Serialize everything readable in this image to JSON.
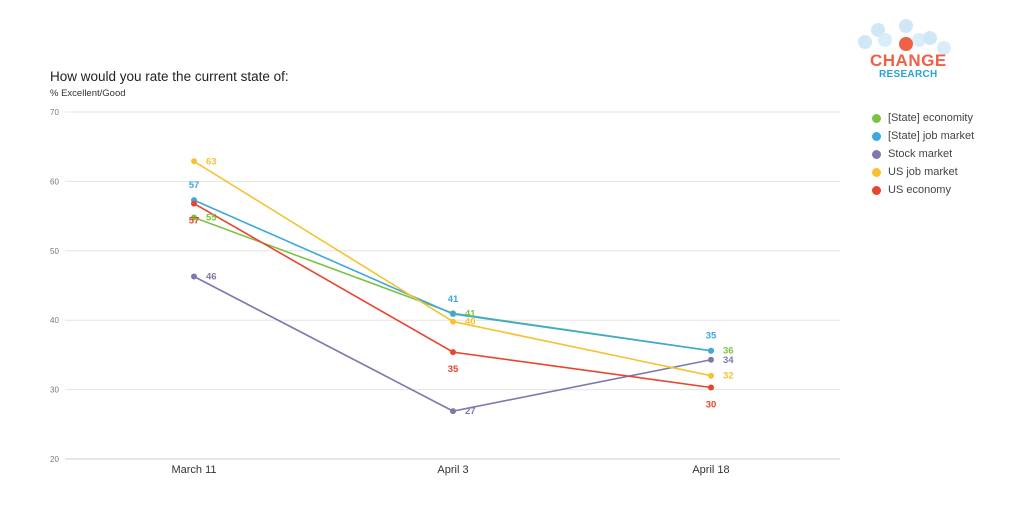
{
  "header": {
    "title": "How would you rate the current state of:",
    "subtitle": "% Excellent/Good"
  },
  "logo": {
    "line1": "CHANGE",
    "line2": "RESEARCH"
  },
  "chart_data": {
    "type": "line",
    "title": "How would you rate the current state of:",
    "ylabel": "% Excellent/Good",
    "xlabel": "",
    "categories": [
      "March 11",
      "April 3",
      "April 18"
    ],
    "ylim": [
      20,
      70
    ],
    "yticks": [
      20,
      30,
      40,
      50,
      60,
      70
    ],
    "grid": true,
    "legend": "right",
    "series": [
      {
        "name": "[State] economity",
        "color": "#7cc242",
        "values": [
          55,
          41,
          36
        ]
      },
      {
        "name": "[State] job market",
        "color": "#3da8db",
        "values": [
          57,
          41,
          35
        ]
      },
      {
        "name": "Stock market",
        "color": "#7d78ad",
        "values": [
          46,
          27,
          34
        ]
      },
      {
        "name": "US job market",
        "color": "#f7c231",
        "values": [
          63,
          40,
          32
        ]
      },
      {
        "name": "US economy",
        "color": "#e8452f",
        "values": [
          57,
          35,
          30
        ]
      }
    ]
  }
}
